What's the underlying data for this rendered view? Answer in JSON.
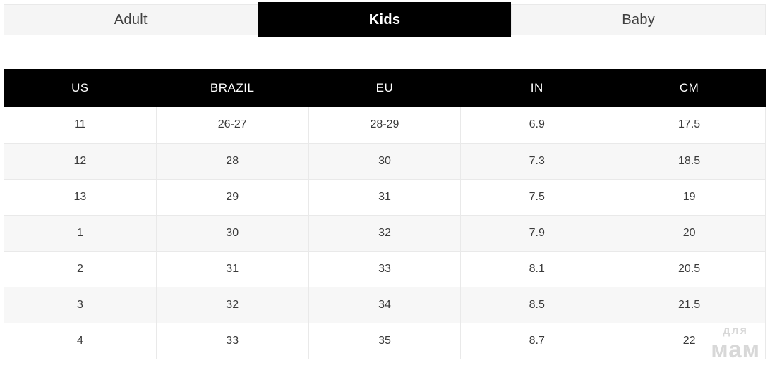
{
  "tabs": [
    {
      "label": "Adult",
      "active": false
    },
    {
      "label": "Kids",
      "active": true
    },
    {
      "label": "Baby",
      "active": false
    }
  ],
  "table": {
    "headers": [
      "US",
      "BRAZIL",
      "EU",
      "IN",
      "CM"
    ],
    "rows": [
      [
        "11",
        "26-27",
        "28-29",
        "6.9",
        "17.5"
      ],
      [
        "12",
        "28",
        "30",
        "7.3",
        "18.5"
      ],
      [
        "13",
        "29",
        "31",
        "7.5",
        "19"
      ],
      [
        "1",
        "30",
        "32",
        "7.9",
        "20"
      ],
      [
        "2",
        "31",
        "33",
        "8.1",
        "20.5"
      ],
      [
        "3",
        "32",
        "34",
        "8.5",
        "21.5"
      ],
      [
        "4",
        "33",
        "35",
        "8.7",
        "22"
      ]
    ]
  },
  "watermark": {
    "line1": "для",
    "line2": "мам"
  },
  "colors": {
    "accent": "#000000",
    "inactive_tab_bg": "#f5f5f5",
    "inactive_tab_text": "#3f3f3f",
    "row_alt_bg": "#f7f7f7",
    "cell_text": "#3a3a3a",
    "border": "#e9e9e9",
    "watermark": "#d8d8d8"
  }
}
